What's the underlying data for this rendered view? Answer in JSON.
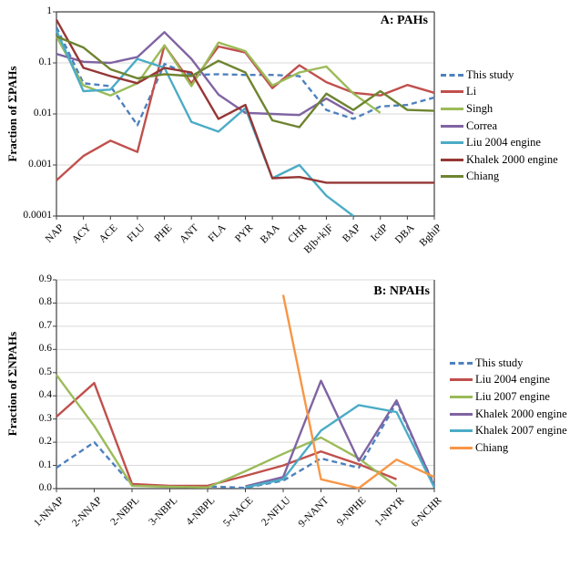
{
  "chart_data": [
    {
      "type": "line",
      "panel": "A",
      "title": "A: PAHs",
      "y_title": "Fraction of ΣPAHs",
      "y_scale": "log",
      "y_min": 0.0001,
      "y_max": 1,
      "grid": "horizontal",
      "legend_position": "right",
      "y_tick_labels": [
        "1",
        "0.1",
        "0.01",
        "0.001",
        "0.0001"
      ],
      "y_tick_values": [
        1,
        0.1,
        0.01,
        0.001,
        0.0001
      ],
      "categories": [
        "NAP",
        "ACY",
        "ACE",
        "FLU",
        "PHE",
        "ANT",
        "FLA",
        "PYR",
        "BAA",
        "CHR",
        "B[b+k]F",
        "BAP",
        "IcdP",
        "DBA",
        "BghiP"
      ],
      "series": [
        {
          "name": "This study",
          "color": "#4F81BD",
          "dashed": true,
          "values": [
            0.5,
            0.04,
            0.035,
            0.006,
            0.095,
            0.058,
            0.06,
            0.058,
            0.058,
            0.055,
            0.012,
            0.008,
            0.014,
            0.015,
            0.021
          ]
        },
        {
          "name": "Li",
          "color": "#C0504D",
          "dashed": false,
          "values": [
            0.0005,
            0.0015,
            0.003,
            0.0018,
            0.22,
            0.04,
            0.21,
            0.16,
            0.032,
            0.09,
            0.042,
            0.026,
            0.023,
            0.037,
            0.026
          ]
        },
        {
          "name": "Singh",
          "color": "#9BBB59",
          "dashed": false,
          "values": [
            0.33,
            0.036,
            0.023,
            0.04,
            0.22,
            0.035,
            0.25,
            0.17,
            0.036,
            0.065,
            0.085,
            0.025,
            0.0105,
            null,
            null
          ]
        },
        {
          "name": "Correa",
          "color": "#8064A2",
          "dashed": false,
          "values": [
            0.15,
            0.105,
            0.1,
            0.13,
            0.4,
            0.12,
            0.024,
            0.0105,
            0.01,
            0.0095,
            0.02,
            0.01,
            null,
            null,
            null
          ]
        },
        {
          "name": "Liu 2004 engine",
          "color": "#4BACC6",
          "dashed": false,
          "values": [
            0.43,
            0.028,
            0.03,
            0.12,
            0.08,
            0.007,
            0.0045,
            0.013,
            0.00055,
            0.001,
            0.00025,
            0.0001,
            null,
            null,
            null
          ]
        },
        {
          "name": "Khalek 2000 engine",
          "color": "#953735",
          "dashed": false,
          "values": [
            0.7,
            0.08,
            0.055,
            0.04,
            0.08,
            0.065,
            0.008,
            0.015,
            0.00055,
            0.00058,
            0.00045,
            0.00045,
            0.00045,
            0.00045,
            0.00045
          ]
        },
        {
          "name": "Chiang",
          "color": "#6E8430",
          "dashed": false,
          "values": [
            0.33,
            0.2,
            0.075,
            0.05,
            0.06,
            0.055,
            0.11,
            0.065,
            0.0075,
            0.0055,
            0.025,
            0.012,
            0.028,
            0.012,
            0.0115
          ]
        }
      ]
    },
    {
      "type": "line",
      "panel": "B",
      "title": "B: NPAHs",
      "y_title": "Fraction of ΣNPAHs",
      "y_scale": "linear",
      "y_min": 0,
      "y_max": 0.9,
      "grid": "horizontal",
      "legend_position": "right",
      "y_tick_labels": [
        "0.9",
        "0.8",
        "0.7",
        "0.6",
        "0.5",
        "0.4",
        "0.3",
        "0.2",
        "0.1",
        "0.0"
      ],
      "y_tick_values": [
        0.9,
        0.8,
        0.7,
        0.6,
        0.5,
        0.4,
        0.3,
        0.2,
        0.1,
        0
      ],
      "categories": [
        "1-NNAP",
        "2-NNAP",
        "2-NBPL",
        "3-NBPL",
        "4-NBPL",
        "5-NACE",
        "2-NFLU",
        "9-NANT",
        "9-NPHE",
        "1-NPYR",
        "6-NCHR"
      ],
      "series": [
        {
          "name": "This study",
          "color": "#4F81BD",
          "dashed": true,
          "values": [
            0.09,
            0.2,
            0.015,
            0.01,
            0.01,
            0.003,
            0.034,
            0.13,
            0.09,
            0.37,
            0.015
          ]
        },
        {
          "name": "Liu 2004 engine",
          "color": "#C0504D",
          "dashed": false,
          "values": [
            0.31,
            0.455,
            0.02,
            0.012,
            0.012,
            0.055,
            0.1,
            0.16,
            0.105,
            0.04,
            null
          ]
        },
        {
          "name": "Liu 2007 engine",
          "color": "#9BBB59",
          "dashed": false,
          "values": [
            0.49,
            0.27,
            0.012,
            0.008,
            0.005,
            0.075,
            0.15,
            0.22,
            0.13,
            0.01,
            null
          ]
        },
        {
          "name": "Khalek 2000 engine",
          "color": "#8064A2",
          "dashed": false,
          "values": [
            null,
            null,
            null,
            null,
            null,
            0.01,
            0.05,
            0.465,
            0.12,
            0.38,
            0.01
          ]
        },
        {
          "name": "Khalek 2007 engine",
          "color": "#4BACC6",
          "dashed": false,
          "values": [
            null,
            null,
            null,
            null,
            null,
            0.005,
            0.04,
            0.25,
            0.36,
            0.33,
            0.005
          ]
        },
        {
          "name": "Chiang",
          "color": "#F79646",
          "dashed": false,
          "values": [
            null,
            null,
            null,
            null,
            null,
            null,
            0.835,
            0.04,
            0.002,
            0.125,
            0.05
          ]
        }
      ]
    }
  ]
}
